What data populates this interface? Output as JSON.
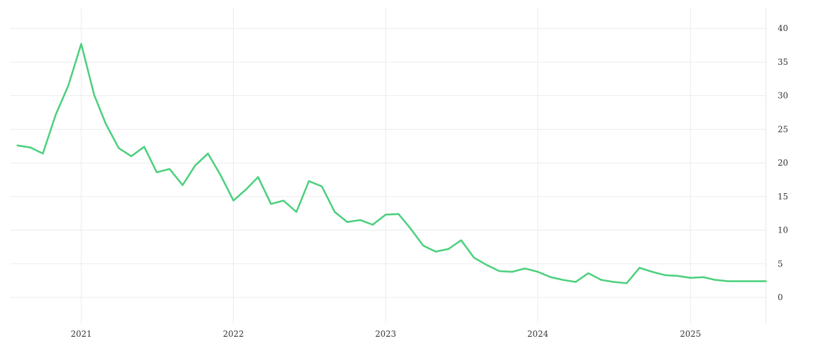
{
  "chart_data": {
    "type": "line",
    "title": "",
    "xlabel": "",
    "ylabel": "",
    "xlim": [
      "2020-07-15",
      "2025-07-01"
    ],
    "ylim": [
      -3.8,
      43
    ],
    "y_axis_side": "right",
    "grid": true,
    "legend": "none",
    "x_ticks": [
      {
        "date": "2021-01-01",
        "label": "2021"
      },
      {
        "date": "2022-01-01",
        "label": "2022"
      },
      {
        "date": "2023-01-01",
        "label": "2023"
      },
      {
        "date": "2024-01-01",
        "label": "2024"
      },
      {
        "date": "2025-01-01",
        "label": "2025"
      }
    ],
    "y_ticks": [
      0,
      5,
      10,
      15,
      20,
      25,
      30,
      35,
      40
    ],
    "series": [
      {
        "color": "#4cd07d",
        "x": [
          "2020-08-01",
          "2020-09-01",
          "2020-10-01",
          "2020-11-01",
          "2020-12-01",
          "2021-01-01",
          "2021-02-01",
          "2021-03-01",
          "2021-04-01",
          "2021-05-01",
          "2021-06-01",
          "2021-07-01",
          "2021-08-01",
          "2021-09-01",
          "2021-10-01",
          "2021-11-01",
          "2021-12-01",
          "2022-01-01",
          "2022-02-01",
          "2022-03-01",
          "2022-04-01",
          "2022-05-01",
          "2022-06-01",
          "2022-07-01",
          "2022-08-01",
          "2022-09-01",
          "2022-10-01",
          "2022-11-01",
          "2022-12-01",
          "2023-01-01",
          "2023-02-01",
          "2023-03-01",
          "2023-04-01",
          "2023-05-01",
          "2023-06-01",
          "2023-07-01",
          "2023-08-01",
          "2023-09-01",
          "2023-10-01",
          "2023-11-01",
          "2023-12-01",
          "2024-01-01",
          "2024-02-01",
          "2024-03-01",
          "2024-04-01",
          "2024-05-01",
          "2024-06-01",
          "2024-07-01",
          "2024-08-01",
          "2024-09-01",
          "2024-10-01",
          "2024-11-01",
          "2024-12-01",
          "2025-01-01",
          "2025-02-01",
          "2025-03-01",
          "2025-04-01",
          "2025-05-01",
          "2025-06-01",
          "2025-07-01"
        ],
        "y": [
          22.6,
          22.3,
          21.4,
          27.2,
          31.5,
          37.7,
          30.1,
          25.8,
          22.2,
          21.0,
          22.4,
          18.6,
          19.1,
          16.7,
          19.6,
          21.4,
          18.2,
          14.4,
          16.1,
          17.9,
          13.9,
          14.4,
          12.7,
          17.3,
          16.5,
          12.7,
          11.2,
          11.5,
          10.8,
          12.3,
          12.4,
          10.3,
          7.7,
          6.8,
          7.2,
          8.5,
          5.9,
          4.8,
          3.9,
          3.8,
          4.3,
          3.8,
          3.0,
          2.6,
          2.3,
          3.6,
          2.6,
          2.3,
          2.1,
          4.4,
          3.8,
          3.3,
          3.2,
          2.9,
          3.0,
          2.6,
          2.4,
          2.4,
          2.4,
          2.4
        ]
      }
    ]
  }
}
